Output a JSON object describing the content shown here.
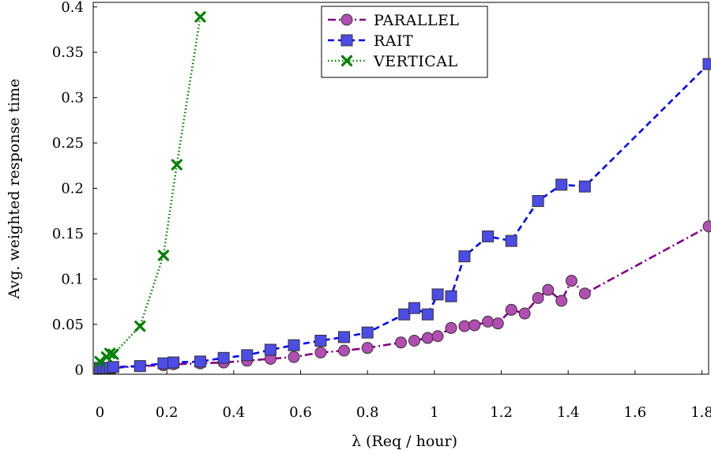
{
  "chart_data": {
    "type": "line",
    "xlabel": "λ (Req / hour)",
    "ylabel": "Avg. weighted response time",
    "xlim": [
      -0.02,
      1.82
    ],
    "ylim": [
      -0.005,
      0.405
    ],
    "xticks": [
      0,
      0.2,
      0.4,
      0.6,
      0.8,
      1,
      1.2,
      1.4,
      1.6,
      1.8
    ],
    "xtick_labels": [
      "0",
      "0.2",
      "0.4",
      "0.6",
      "0.8",
      "1",
      "1.2",
      "1.4",
      "1.6",
      "1.8"
    ],
    "yticks": [
      0,
      0.05,
      0.1,
      0.15,
      0.2,
      0.25,
      0.3,
      0.35,
      0.4
    ],
    "ytick_labels": [
      "0",
      "0.05",
      "0.1",
      "0.15",
      "0.2",
      "0.25",
      "0.3",
      "0.35",
      "0.4"
    ],
    "grid": false,
    "legend_position": "top-center",
    "series": [
      {
        "name": "PARALLEL",
        "color": "#800080",
        "fill": "#b24db2",
        "marker": "circle",
        "line_style": "dash-dot",
        "x": [
          0.0,
          0.01,
          0.02,
          0.03,
          0.04,
          0.12,
          0.19,
          0.22,
          0.3,
          0.37,
          0.44,
          0.51,
          0.58,
          0.66,
          0.73,
          0.8,
          0.9,
          0.94,
          0.98,
          1.01,
          1.05,
          1.09,
          1.12,
          1.16,
          1.19,
          1.23,
          1.27,
          1.31,
          1.34,
          1.38,
          1.41,
          1.45,
          1.82
        ],
        "y": [
          0.002,
          0.002,
          0.002,
          0.002,
          0.002,
          0.004,
          0.005,
          0.006,
          0.007,
          0.008,
          0.01,
          0.012,
          0.014,
          0.019,
          0.021,
          0.024,
          0.03,
          0.032,
          0.035,
          0.037,
          0.046,
          0.048,
          0.049,
          0.053,
          0.051,
          0.066,
          0.062,
          0.079,
          0.088,
          0.076,
          0.098,
          0.084,
          0.158
        ]
      },
      {
        "name": "RAIT",
        "color": "#0000ff",
        "fill": "#4c4ce6",
        "marker": "square",
        "line_style": "dashed",
        "x": [
          0.0,
          0.01,
          0.02,
          0.03,
          0.04,
          0.12,
          0.19,
          0.22,
          0.3,
          0.37,
          0.44,
          0.51,
          0.58,
          0.66,
          0.73,
          0.8,
          0.91,
          0.94,
          0.98,
          1.01,
          1.05,
          1.09,
          1.16,
          1.23,
          1.31,
          1.38,
          1.45,
          1.82
        ],
        "y": [
          0.002,
          0.002,
          0.002,
          0.002,
          0.003,
          0.004,
          0.007,
          0.008,
          0.009,
          0.013,
          0.016,
          0.022,
          0.027,
          0.032,
          0.036,
          0.041,
          0.061,
          0.068,
          0.061,
          0.083,
          0.081,
          0.125,
          0.147,
          0.142,
          0.186,
          0.204,
          0.202,
          0.337
        ]
      },
      {
        "name": "VERTICAL",
        "color": "#008000",
        "fill": "#008000",
        "marker": "x",
        "line_style": "dotted",
        "x": [
          0.0,
          0.02,
          0.03,
          0.04,
          0.12,
          0.19,
          0.23,
          0.3
        ],
        "y": [
          0.009,
          0.014,
          0.018,
          0.017,
          0.048,
          0.126,
          0.226,
          0.389
        ]
      }
    ]
  }
}
